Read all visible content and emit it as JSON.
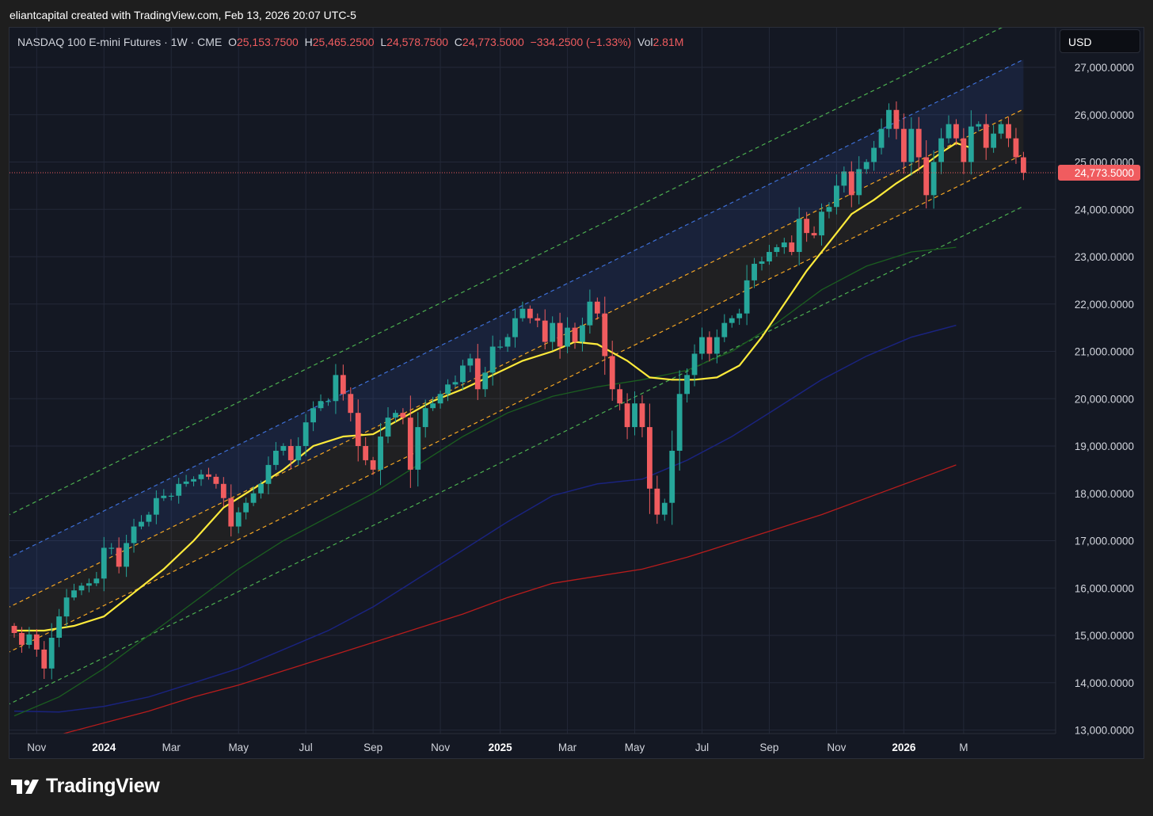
{
  "header": {
    "attribution": "eliantcapital created with TradingView.com, Feb 13, 2026 20:07 UTC-5"
  },
  "legend": {
    "symbol": "NASDAQ 100 E-mini Futures · 1W · CME",
    "o_label": "O",
    "o_value": "25,153.7500",
    "h_label": "H",
    "h_value": "25,465.2500",
    "l_label": "L",
    "l_value": "24,578.7500",
    "c_label": "C",
    "c_value": "24,773.5000",
    "change": "−334.2500 (−1.33%)",
    "vol_label": "Vol",
    "vol_value": "2.81M"
  },
  "currency_button": "USD",
  "footer": {
    "brand": "TradingView",
    "logo_icon": "tradingview-logo-icon"
  },
  "colors": {
    "up": "#26a69a",
    "down": "#f05c5f",
    "sma20": "#ffeb3b",
    "sma50": "#1b5e20",
    "sma100": "#1a237e",
    "sma200": "#b71c1c",
    "channel_blue": "#3d6fd6",
    "channel_orange": "#f5a623",
    "channel_green": "#4caf50",
    "price_line": "#f05c5f"
  },
  "chart_data": {
    "type": "candlestick",
    "timeframe": "1W",
    "ylim": [
      12750,
      27750
    ],
    "y_ticks": [
      "13,000.0000",
      "14,000.0000",
      "15,000.0000",
      "16,000.0000",
      "17,000.0000",
      "18,000.0000",
      "19,000.0000",
      "20,000.0000",
      "21,000.0000",
      "22,000.0000",
      "23,000.0000",
      "24,000.0000",
      "25,000.0000",
      "26,000.0000",
      "27,000.0000"
    ],
    "y_tick_values": [
      13000,
      14000,
      15000,
      16000,
      17000,
      18000,
      19000,
      20000,
      21000,
      22000,
      23000,
      24000,
      25000,
      26000,
      27000
    ],
    "x_ticks": [
      {
        "label": "Nov",
        "week": 3,
        "bold": false
      },
      {
        "label": "2024",
        "week": 12,
        "bold": true
      },
      {
        "label": "Mar",
        "week": 21,
        "bold": false
      },
      {
        "label": "May",
        "week": 30,
        "bold": false
      },
      {
        "label": "Jul",
        "week": 39,
        "bold": false
      },
      {
        "label": "Sep",
        "week": 48,
        "bold": false
      },
      {
        "label": "Nov",
        "week": 57,
        "bold": false
      },
      {
        "label": "2025",
        "week": 65,
        "bold": true
      },
      {
        "label": "Mar",
        "week": 74,
        "bold": false
      },
      {
        "label": "May",
        "week": 83,
        "bold": false
      },
      {
        "label": "Jul",
        "week": 92,
        "bold": false
      },
      {
        "label": "Sep",
        "week": 101,
        "bold": false
      },
      {
        "label": "Nov",
        "week": 110,
        "bold": false
      },
      {
        "label": "2026",
        "week": 119,
        "bold": true
      },
      {
        "label": "M",
        "week": 127,
        "bold": false
      }
    ],
    "last_price": 24773.5,
    "last_price_label": "24,773.5000",
    "closes": [
      15050,
      14800,
      15020,
      14700,
      14300,
      14950,
      15400,
      15800,
      15950,
      16050,
      16100,
      16200,
      16850,
      16850,
      16450,
      16950,
      17300,
      17400,
      17550,
      17900,
      17950,
      17950,
      18200,
      18250,
      18300,
      18400,
      18350,
      18200,
      17900,
      17300,
      17600,
      17800,
      18000,
      18200,
      18600,
      18900,
      19000,
      18700,
      19000,
      19500,
      19800,
      19950,
      19950,
      20500,
      20100,
      19700,
      19000,
      18700,
      18500,
      19200,
      19600,
      19700,
      19600,
      18500,
      19400,
      19800,
      19900,
      20100,
      20300,
      20350,
      20700,
      20850,
      20200,
      20550,
      21100,
      21100,
      21300,
      21700,
      21900,
      21700,
      21650,
      21200,
      21600,
      21100,
      21500,
      21200,
      21550,
      22050,
      21800,
      20900,
      20200,
      19900,
      19400,
      19900,
      19400,
      18100,
      17550,
      17800,
      18900,
      20100,
      20500,
      20950,
      21300,
      20950,
      21300,
      21600,
      21700,
      21800,
      22500,
      22850,
      22900,
      23100,
      23200,
      23300,
      23100,
      23800,
      23500,
      23450,
      23950,
      24050,
      24500,
      24800,
      24300,
      24850,
      25000,
      25300,
      25700,
      26100,
      25700,
      25000,
      25700,
      25100,
      24300,
      25000,
      25500,
      25800,
      25500,
      25000,
      25750,
      25800,
      25300,
      25600,
      25800,
      25500,
      25100,
      24773.5
    ],
    "channels": {
      "blue_upper": {
        "x": [
          0,
          129
        ],
        "y": [
          16700,
          26700
        ]
      },
      "orange_upper": {
        "x": [
          0,
          129
        ],
        "y": [
          15650,
          25650
        ]
      },
      "orange_lower": {
        "x": [
          0,
          129
        ],
        "y": [
          14700,
          24700
        ]
      },
      "green_upper": {
        "x": [
          0,
          129
        ],
        "y": [
          17600,
          27600
        ]
      },
      "green_lower": {
        "x": [
          0,
          129
        ],
        "y": [
          13600,
          23600
        ]
      }
    },
    "series": [
      {
        "name": "",
        "kind": "sma20",
        "points": [
          [
            0,
            15100
          ],
          [
            4,
            15100
          ],
          [
            8,
            15200
          ],
          [
            12,
            15400
          ],
          [
            16,
            15900
          ],
          [
            20,
            16400
          ],
          [
            24,
            17000
          ],
          [
            28,
            17700
          ],
          [
            32,
            18100
          ],
          [
            36,
            18500
          ],
          [
            40,
            19000
          ],
          [
            44,
            19200
          ],
          [
            48,
            19250
          ],
          [
            52,
            19600
          ],
          [
            56,
            19950
          ],
          [
            60,
            20200
          ],
          [
            64,
            20500
          ],
          [
            68,
            20800
          ],
          [
            72,
            21000
          ],
          [
            75,
            21200
          ],
          [
            78,
            21150
          ],
          [
            82,
            20800
          ],
          [
            85,
            20450
          ],
          [
            88,
            20400
          ],
          [
            91,
            20400
          ],
          [
            94,
            20450
          ],
          [
            97,
            20700
          ],
          [
            100,
            21300
          ],
          [
            103,
            22000
          ],
          [
            106,
            22700
          ],
          [
            109,
            23300
          ],
          [
            112,
            23900
          ],
          [
            115,
            24200
          ],
          [
            118,
            24550
          ],
          [
            121,
            24850
          ],
          [
            124,
            25200
          ],
          [
            126,
            25400
          ],
          [
            128,
            25300
          ]
        ]
      },
      {
        "name": "",
        "kind": "sma50",
        "points": [
          [
            0,
            13300
          ],
          [
            6,
            13700
          ],
          [
            12,
            14300
          ],
          [
            18,
            15000
          ],
          [
            24,
            15700
          ],
          [
            30,
            16400
          ],
          [
            36,
            17000
          ],
          [
            42,
            17500
          ],
          [
            48,
            18000
          ],
          [
            54,
            18600
          ],
          [
            60,
            19200
          ],
          [
            66,
            19700
          ],
          [
            72,
            20050
          ],
          [
            78,
            20250
          ],
          [
            84,
            20400
          ],
          [
            90,
            20600
          ],
          [
            96,
            21000
          ],
          [
            102,
            21600
          ],
          [
            108,
            22300
          ],
          [
            114,
            22800
          ],
          [
            120,
            23100
          ],
          [
            126,
            23200
          ]
        ]
      },
      {
        "name": "",
        "kind": "sma100",
        "points": [
          [
            0,
            13400
          ],
          [
            6,
            13380
          ],
          [
            12,
            13500
          ],
          [
            18,
            13700
          ],
          [
            24,
            14000
          ],
          [
            30,
            14300
          ],
          [
            36,
            14700
          ],
          [
            42,
            15100
          ],
          [
            48,
            15600
          ],
          [
            54,
            16200
          ],
          [
            60,
            16800
          ],
          [
            66,
            17400
          ],
          [
            72,
            17950
          ],
          [
            78,
            18200
          ],
          [
            84,
            18300
          ],
          [
            90,
            18700
          ],
          [
            96,
            19200
          ],
          [
            102,
            19800
          ],
          [
            108,
            20400
          ],
          [
            114,
            20900
          ],
          [
            120,
            21300
          ],
          [
            126,
            21550
          ]
        ]
      },
      {
        "name": "",
        "kind": "sma200",
        "points": [
          [
            6,
            12900
          ],
          [
            12,
            13150
          ],
          [
            18,
            13400
          ],
          [
            24,
            13700
          ],
          [
            30,
            13950
          ],
          [
            36,
            14250
          ],
          [
            42,
            14550
          ],
          [
            48,
            14850
          ],
          [
            54,
            15150
          ],
          [
            60,
            15450
          ],
          [
            66,
            15800
          ],
          [
            72,
            16100
          ],
          [
            78,
            16250
          ],
          [
            84,
            16400
          ],
          [
            90,
            16650
          ],
          [
            96,
            16950
          ],
          [
            102,
            17250
          ],
          [
            108,
            17550
          ],
          [
            114,
            17900
          ],
          [
            120,
            18250
          ],
          [
            126,
            18600
          ]
        ]
      }
    ]
  }
}
